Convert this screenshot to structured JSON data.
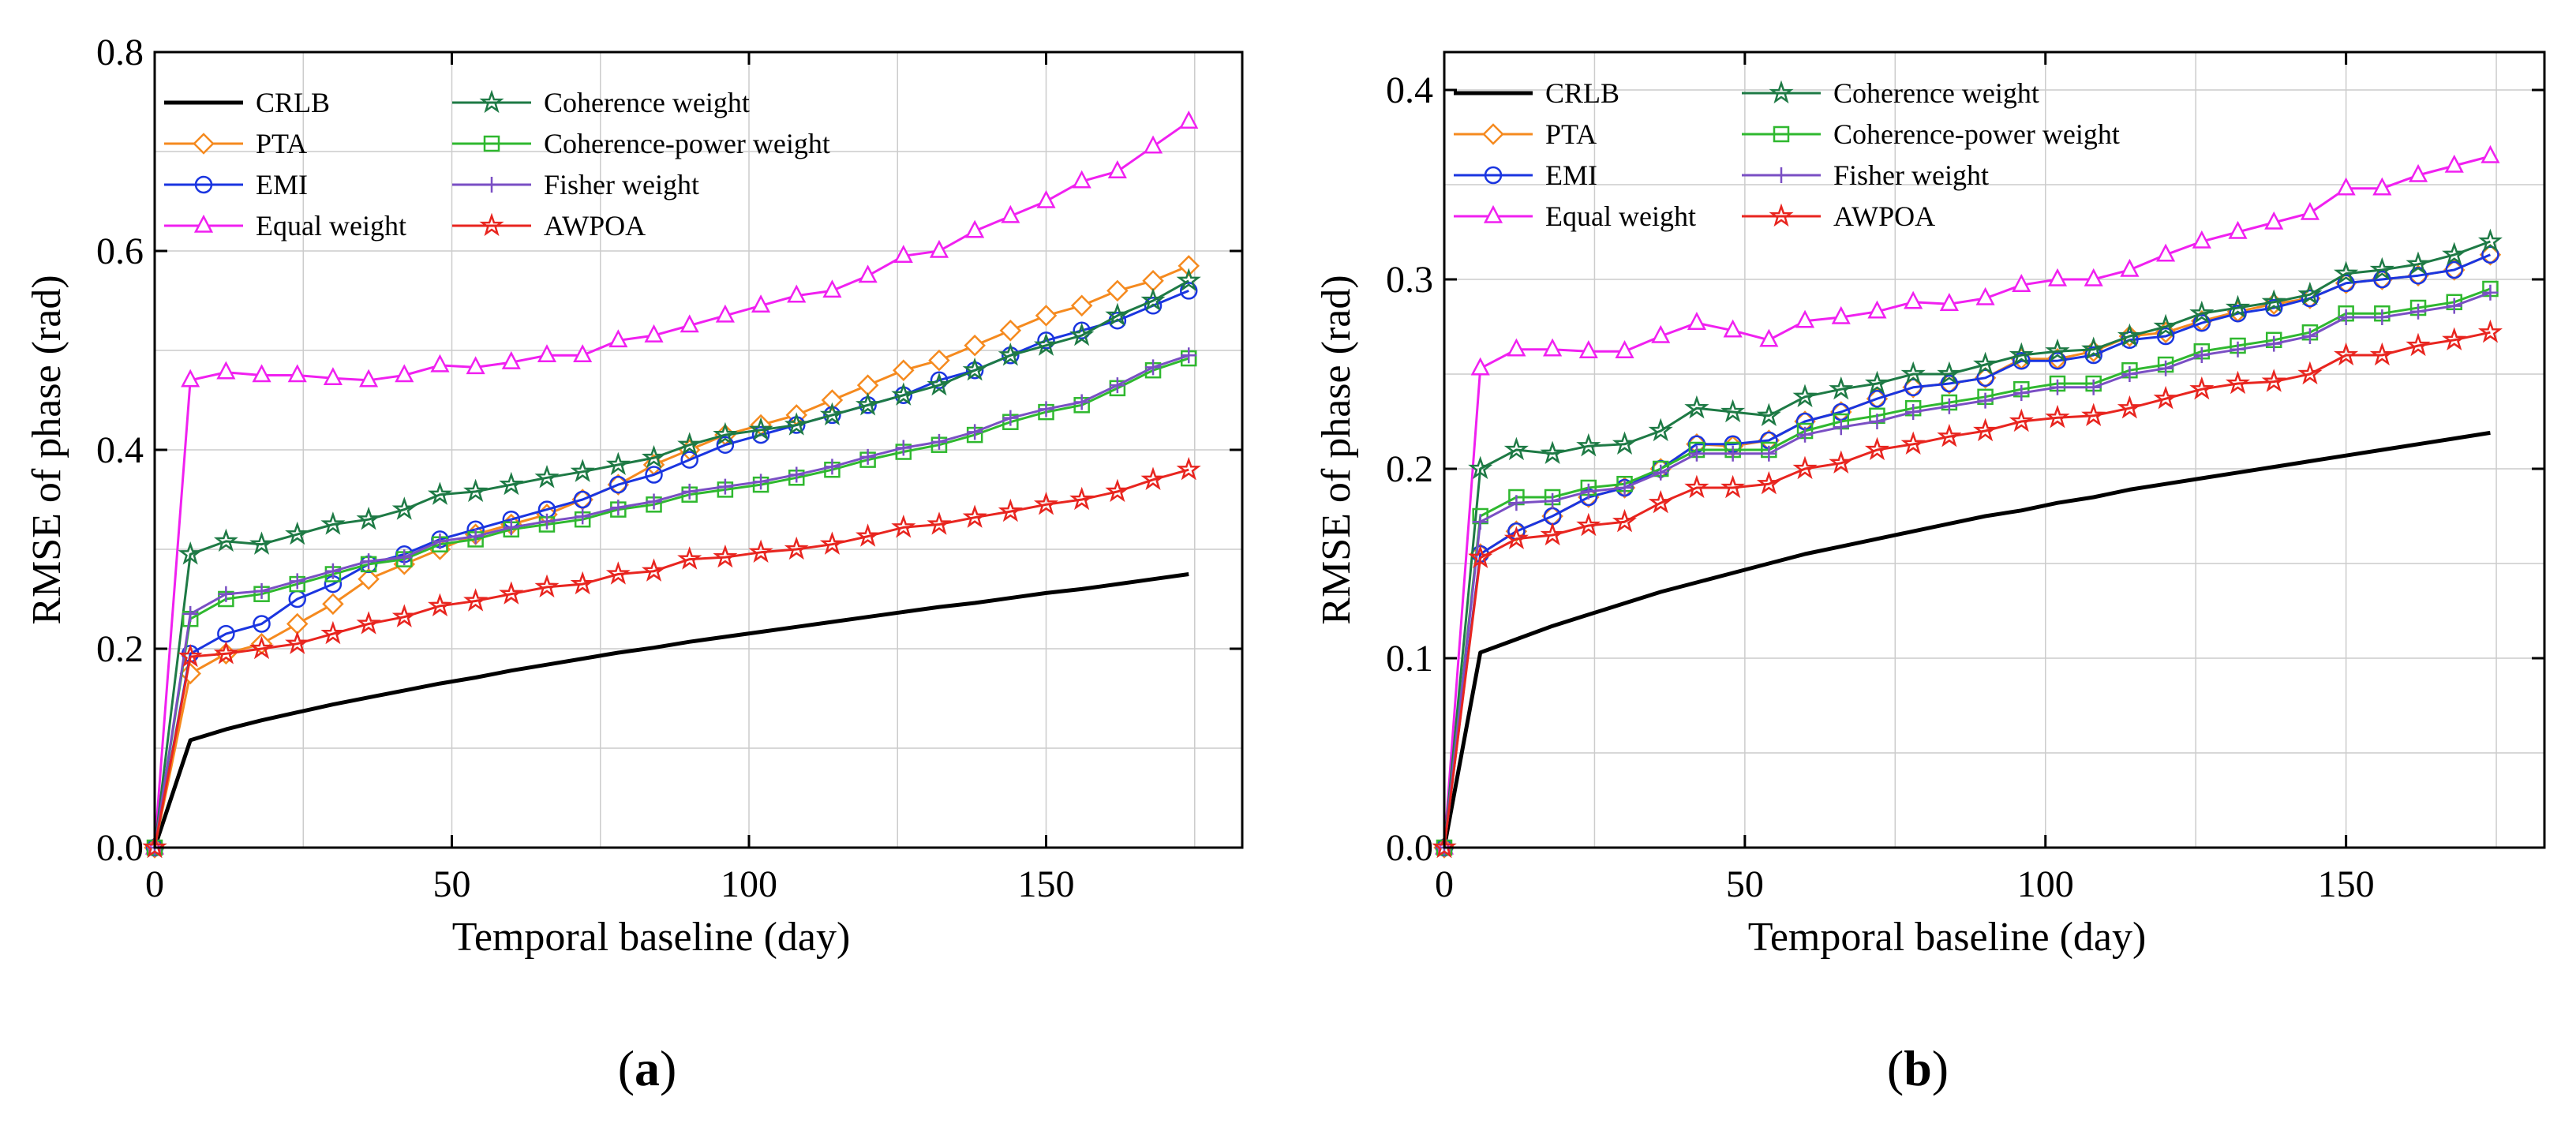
{
  "chart_data": [
    {
      "type": "line",
      "panel_label": "(a)",
      "panel_letter": "a",
      "xlabel": "Temporal baseline (day)",
      "ylabel": "RMSE of phase (rad)",
      "xlim": [
        0,
        183
      ],
      "ylim": [
        0,
        0.8
      ],
      "xticks": [
        0,
        50,
        100,
        150
      ],
      "xtick_labels": [
        "0",
        "50",
        "100",
        "150"
      ],
      "yticks": [
        0,
        0.2,
        0.4,
        0.6,
        0.8
      ],
      "ytick_labels": [
        "0.0",
        "0.2",
        "0.4",
        "0.6",
        "0.8"
      ],
      "grid": true,
      "legend_position": "top-left",
      "x": [
        0,
        6,
        12,
        18,
        24,
        30,
        36,
        42,
        48,
        54,
        60,
        66,
        72,
        78,
        84,
        90,
        96,
        102,
        108,
        114,
        120,
        126,
        132,
        138,
        144,
        150,
        156,
        162,
        168,
        174
      ],
      "series": [
        {
          "name": "CRLB",
          "color": "#000000",
          "marker": "none",
          "width": 5,
          "values": [
            0,
            0.108,
            0.119,
            0.128,
            0.136,
            0.144,
            0.151,
            0.158,
            0.165,
            0.171,
            0.178,
            0.184,
            0.19,
            0.196,
            0.201,
            0.207,
            0.212,
            0.217,
            0.222,
            0.227,
            0.232,
            0.237,
            0.242,
            0.246,
            0.251,
            0.256,
            0.26,
            0.265,
            0.27,
            0.275
          ]
        },
        {
          "name": "PTA",
          "color": "#f58a1f",
          "marker": "diamond",
          "width": 3,
          "values": [
            0,
            0.175,
            0.195,
            0.205,
            0.225,
            0.245,
            0.27,
            0.285,
            0.3,
            0.315,
            0.325,
            0.335,
            0.35,
            0.365,
            0.385,
            0.4,
            0.415,
            0.425,
            0.435,
            0.45,
            0.465,
            0.48,
            0.49,
            0.505,
            0.52,
            0.535,
            0.545,
            0.56,
            0.57,
            0.585
          ]
        },
        {
          "name": "EMI",
          "color": "#1a35e0",
          "marker": "circle",
          "width": 3,
          "values": [
            0,
            0.195,
            0.215,
            0.225,
            0.25,
            0.265,
            0.285,
            0.295,
            0.31,
            0.32,
            0.33,
            0.34,
            0.35,
            0.365,
            0.375,
            0.39,
            0.405,
            0.415,
            0.425,
            0.435,
            0.445,
            0.455,
            0.47,
            0.48,
            0.495,
            0.51,
            0.52,
            0.53,
            0.545,
            0.56
          ]
        },
        {
          "name": "Equal weight",
          "color": "#f020f0",
          "marker": "triangle",
          "width": 3,
          "values": [
            0,
            0.47,
            0.478,
            0.475,
            0.475,
            0.472,
            0.47,
            0.475,
            0.485,
            0.483,
            0.488,
            0.495,
            0.495,
            0.51,
            0.515,
            0.525,
            0.535,
            0.545,
            0.555,
            0.56,
            0.575,
            0.595,
            0.6,
            0.62,
            0.635,
            0.65,
            0.67,
            0.68,
            0.705,
            0.73
          ]
        },
        {
          "name": "Coherence weight",
          "color": "#1e7a45",
          "marker": "star",
          "width": 3,
          "values": [
            0,
            0.295,
            0.308,
            0.305,
            0.315,
            0.325,
            0.33,
            0.34,
            0.355,
            0.358,
            0.365,
            0.372,
            0.378,
            0.385,
            0.392,
            0.405,
            0.415,
            0.42,
            0.425,
            0.435,
            0.445,
            0.455,
            0.465,
            0.48,
            0.495,
            0.505,
            0.515,
            0.535,
            0.55,
            0.57
          ]
        },
        {
          "name": "Coherence-power weight",
          "color": "#2fb82f",
          "marker": "square",
          "width": 3,
          "values": [
            0,
            0.23,
            0.25,
            0.255,
            0.265,
            0.275,
            0.285,
            0.29,
            0.305,
            0.31,
            0.32,
            0.325,
            0.33,
            0.34,
            0.345,
            0.355,
            0.36,
            0.365,
            0.372,
            0.38,
            0.39,
            0.398,
            0.405,
            0.415,
            0.428,
            0.438,
            0.445,
            0.462,
            0.48,
            0.492
          ]
        },
        {
          "name": "Fisher weight",
          "color": "#7a4fc4",
          "marker": "plus",
          "width": 3,
          "values": [
            0,
            0.235,
            0.255,
            0.258,
            0.268,
            0.278,
            0.288,
            0.292,
            0.308,
            0.313,
            0.322,
            0.328,
            0.333,
            0.342,
            0.348,
            0.358,
            0.363,
            0.368,
            0.375,
            0.383,
            0.393,
            0.402,
            0.408,
            0.418,
            0.432,
            0.441,
            0.448,
            0.465,
            0.483,
            0.495
          ]
        },
        {
          "name": "AWPOA",
          "color": "#e8251f",
          "marker": "star",
          "width": 3,
          "values": [
            0,
            0.192,
            0.195,
            0.2,
            0.205,
            0.215,
            0.225,
            0.232,
            0.243,
            0.248,
            0.255,
            0.262,
            0.265,
            0.275,
            0.278,
            0.29,
            0.292,
            0.297,
            0.3,
            0.305,
            0.313,
            0.322,
            0.325,
            0.332,
            0.338,
            0.345,
            0.35,
            0.358,
            0.37,
            0.38
          ]
        }
      ],
      "legend_columns": [
        [
          "CRLB",
          "PTA",
          "EMI",
          "Equal weight"
        ],
        [
          "Coherence weight",
          "Coherence-power weight",
          "Fisher weight",
          "AWPOA"
        ]
      ]
    },
    {
      "type": "line",
      "panel_label": "(b)",
      "panel_letter": "b",
      "xlabel": "Temporal baseline (day)",
      "ylabel": "RMSE of phase (rad)",
      "xlim": [
        0,
        183
      ],
      "ylim": [
        0,
        0.42
      ],
      "xticks": [
        0,
        50,
        100,
        150
      ],
      "xtick_labels": [
        "0",
        "50",
        "100",
        "150"
      ],
      "yticks": [
        0,
        0.1,
        0.2,
        0.3,
        0.4
      ],
      "ytick_labels": [
        "0.0",
        "0.1",
        "0.2",
        "0.3",
        "0.4"
      ],
      "grid": true,
      "legend_position": "top-left",
      "x": [
        0,
        6,
        12,
        18,
        24,
        30,
        36,
        42,
        48,
        54,
        60,
        66,
        72,
        78,
        84,
        90,
        96,
        102,
        108,
        114,
        120,
        126,
        132,
        138,
        144,
        150,
        156,
        162,
        168,
        174
      ],
      "series": [
        {
          "name": "CRLB",
          "color": "#000000",
          "marker": "none",
          "width": 5,
          "values": [
            0,
            0.103,
            0.11,
            0.117,
            0.123,
            0.129,
            0.135,
            0.14,
            0.145,
            0.15,
            0.155,
            0.159,
            0.163,
            0.167,
            0.171,
            0.175,
            0.178,
            0.182,
            0.185,
            0.189,
            0.192,
            0.195,
            0.198,
            0.201,
            0.204,
            0.207,
            0.21,
            0.213,
            0.216,
            0.219
          ]
        },
        {
          "name": "PTA",
          "color": "#f58a1f",
          "marker": "diamond",
          "width": 3,
          "values": [
            0,
            0.155,
            0.167,
            0.175,
            0.185,
            0.19,
            0.2,
            0.213,
            0.212,
            0.215,
            0.225,
            0.23,
            0.237,
            0.243,
            0.245,
            0.248,
            0.258,
            0.258,
            0.262,
            0.27,
            0.272,
            0.278,
            0.283,
            0.287,
            0.29,
            0.298,
            0.3,
            0.302,
            0.305,
            0.313
          ]
        },
        {
          "name": "EMI",
          "color": "#1a35e0",
          "marker": "circle",
          "width": 3,
          "values": [
            0,
            0.155,
            0.167,
            0.175,
            0.185,
            0.19,
            0.2,
            0.213,
            0.213,
            0.215,
            0.225,
            0.23,
            0.237,
            0.243,
            0.245,
            0.248,
            0.257,
            0.257,
            0.26,
            0.268,
            0.27,
            0.277,
            0.282,
            0.285,
            0.29,
            0.298,
            0.3,
            0.302,
            0.305,
            0.313
          ]
        },
        {
          "name": "Equal weight",
          "color": "#f020f0",
          "marker": "triangle",
          "width": 3,
          "values": [
            0,
            0.253,
            0.263,
            0.263,
            0.262,
            0.262,
            0.27,
            0.277,
            0.273,
            0.268,
            0.278,
            0.28,
            0.283,
            0.288,
            0.287,
            0.29,
            0.297,
            0.3,
            0.3,
            0.305,
            0.313,
            0.32,
            0.325,
            0.33,
            0.335,
            0.348,
            0.348,
            0.355,
            0.36,
            0.365
          ]
        },
        {
          "name": "Coherence weight",
          "color": "#1e7a45",
          "marker": "star",
          "width": 3,
          "values": [
            0,
            0.2,
            0.21,
            0.208,
            0.212,
            0.213,
            0.22,
            0.232,
            0.23,
            0.228,
            0.238,
            0.242,
            0.245,
            0.25,
            0.25,
            0.255,
            0.26,
            0.262,
            0.263,
            0.27,
            0.275,
            0.282,
            0.285,
            0.288,
            0.292,
            0.303,
            0.305,
            0.308,
            0.313,
            0.32
          ]
        },
        {
          "name": "Coherence-power weight",
          "color": "#2fb82f",
          "marker": "square",
          "width": 3,
          "values": [
            0,
            0.175,
            0.185,
            0.185,
            0.19,
            0.192,
            0.2,
            0.21,
            0.21,
            0.21,
            0.22,
            0.225,
            0.228,
            0.232,
            0.235,
            0.238,
            0.242,
            0.245,
            0.245,
            0.252,
            0.255,
            0.262,
            0.265,
            0.268,
            0.272,
            0.282,
            0.282,
            0.285,
            0.288,
            0.295
          ]
        },
        {
          "name": "Fisher weight",
          "color": "#7a4fc4",
          "marker": "plus",
          "width": 3,
          "values": [
            0,
            0.172,
            0.182,
            0.183,
            0.188,
            0.19,
            0.198,
            0.208,
            0.208,
            0.208,
            0.218,
            0.222,
            0.225,
            0.23,
            0.233,
            0.236,
            0.24,
            0.243,
            0.243,
            0.25,
            0.253,
            0.26,
            0.263,
            0.266,
            0.27,
            0.28,
            0.28,
            0.283,
            0.286,
            0.293
          ]
        },
        {
          "name": "AWPOA",
          "color": "#e8251f",
          "marker": "star",
          "width": 3,
          "values": [
            0,
            0.153,
            0.163,
            0.165,
            0.17,
            0.172,
            0.182,
            0.19,
            0.19,
            0.192,
            0.2,
            0.203,
            0.21,
            0.213,
            0.217,
            0.22,
            0.225,
            0.227,
            0.228,
            0.232,
            0.237,
            0.242,
            0.245,
            0.246,
            0.25,
            0.26,
            0.26,
            0.265,
            0.268,
            0.272
          ]
        }
      ],
      "legend_columns": [
        [
          "CRLB",
          "PTA",
          "EMI",
          "Equal weight"
        ],
        [
          "Coherence weight",
          "Coherence-power weight",
          "Fisher weight",
          "AWPOA"
        ]
      ]
    }
  ]
}
